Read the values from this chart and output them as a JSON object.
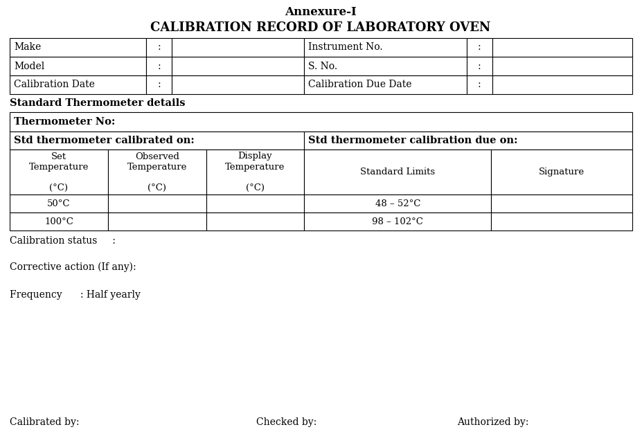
{
  "title_line1": "Annexure-I",
  "title_line2": "CALIBRATION RECORD OF LABORATORY OVEN",
  "top_rows": [
    [
      "Make",
      ":",
      "",
      "Instrument No.",
      ":",
      ""
    ],
    [
      "Model",
      ":",
      "",
      "S. No.",
      ":",
      ""
    ],
    [
      "Calibration Date",
      ":",
      "",
      "Calibration Due Date",
      ":",
      ""
    ]
  ],
  "section_label": "Standard Thermometer details",
  "thermometer_label": "Thermometer No:",
  "calibrated_on_label": "Std thermometer calibrated on:",
  "calibration_due_label": "Std thermometer calibration due on:",
  "col_headers_left": [
    "Set\nTemperature\n\n(°C)",
    "Observed\nTemperature\n\n(°C)",
    "Display\nTemperature\n\n(°C)"
  ],
  "col_headers_right": [
    "Standard Limits",
    "Signature"
  ],
  "data_rows": [
    [
      "50°C",
      "",
      "",
      "48 – 52°C",
      ""
    ],
    [
      "100°C",
      "",
      "",
      "98 – 102°C",
      ""
    ]
  ],
  "calibration_status": "Calibration status     :",
  "corrective_action": "Corrective action (If any):",
  "frequency": "Frequency      : Half yearly",
  "footer_left": "Calibrated by:",
  "footer_mid": "Checked by:",
  "footer_right": "Authorized by:",
  "bg_color": "#ffffff",
  "border_color": "#000000",
  "text_color": "#000000",
  "lw": 0.8
}
